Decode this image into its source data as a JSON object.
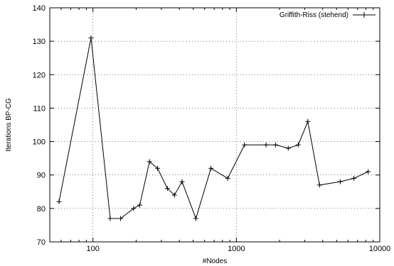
{
  "chart_data": {
    "type": "line",
    "title": "",
    "xlabel": "#Nodes",
    "ylabel": "Iterations BP-CG",
    "x_scale": "log",
    "xlim": [
      50,
      10000
    ],
    "ylim": [
      70,
      140
    ],
    "x_ticks": [
      100,
      1000,
      10000
    ],
    "x_tick_labels": [
      "100",
      "1000",
      "10000"
    ],
    "y_ticks": [
      70,
      80,
      90,
      100,
      110,
      120,
      130,
      140
    ],
    "y_tick_labels": [
      "70",
      "80",
      "90",
      "100",
      "110",
      "120",
      "130",
      "140"
    ],
    "grid": "dotted",
    "legend_position": "top-right",
    "series_color": "#000000",
    "series": [
      {
        "name": "Griffith-Riss (stehend)",
        "marker": "plus",
        "x": [
          58,
          97,
          132,
          156,
          192,
          212,
          248,
          282,
          330,
          370,
          418,
          522,
          665,
          870,
          1140,
          1610,
          1880,
          2300,
          2700,
          3150,
          3800,
          5300,
          6600,
          8300
        ],
        "y": [
          82,
          131,
          77,
          77,
          80,
          81,
          94,
          92,
          86,
          84,
          88,
          77,
          92,
          89,
          99,
          99,
          99,
          98,
          99,
          106,
          87,
          88,
          89,
          91
        ]
      }
    ]
  }
}
